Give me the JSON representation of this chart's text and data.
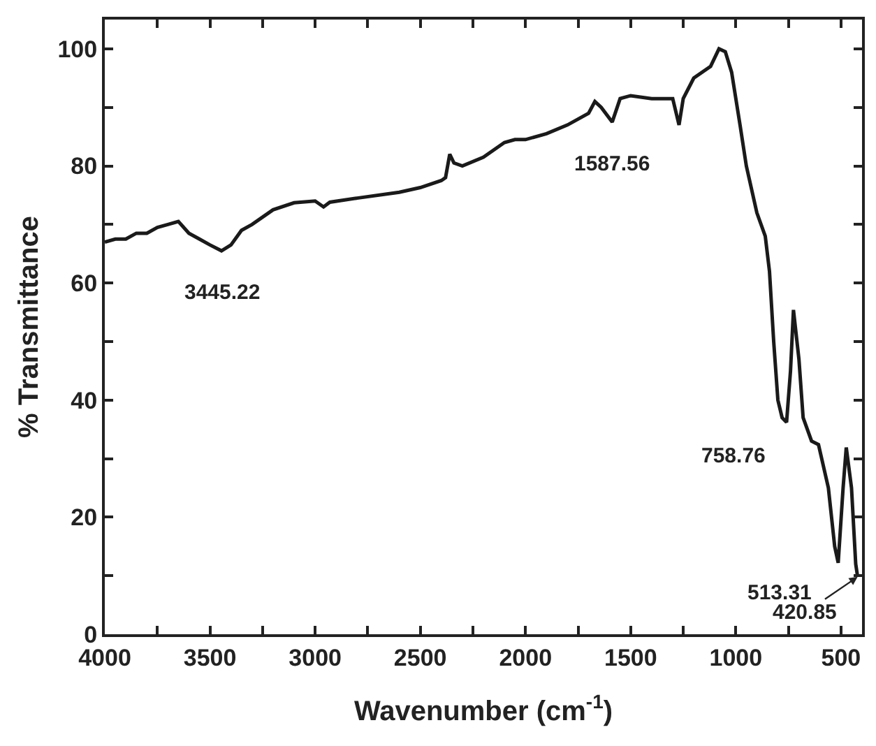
{
  "chart_data": {
    "type": "line",
    "xlabel": "Wavenumber (cm$^{-1}$)",
    "ylabel": "% Transmittance",
    "xlim": [
      4000,
      400
    ],
    "ylim": [
      0,
      105
    ],
    "xticks": [
      4000,
      {
        "value": 3750,
        "label": null
      },
      3500,
      {
        "value": 3250,
        "label": null
      },
      3000,
      {
        "value": 2750,
        "label": null
      },
      2500,
      {
        "value": 2250,
        "label": null
      },
      2000,
      {
        "value": 1750,
        "label": null
      },
      1500,
      {
        "value": 1250,
        "label": null
      },
      1000,
      {
        "value": 750,
        "label": null
      },
      500
    ],
    "yticks": [
      0,
      {
        "value": 10,
        "label": null
      },
      20,
      {
        "value": 30,
        "label": null
      },
      40,
      {
        "value": 50,
        "label": null
      },
      60,
      {
        "value": 70,
        "label": null
      },
      80,
      {
        "value": 90,
        "label": null
      },
      100
    ],
    "marker": "none",
    "line_style": "solid",
    "series": [
      {
        "color": "#1a1a1a",
        "x": [
          4000,
          3950,
          3900,
          3850,
          3800,
          3750,
          3700,
          3650,
          3600,
          3550,
          3500,
          3445.22,
          3400,
          3350,
          3300,
          3200,
          3100,
          3000,
          2960,
          2930,
          2800,
          2600,
          2500,
          2400,
          2380,
          2360,
          2340,
          2300,
          2200,
          2100,
          2050,
          2000,
          1900,
          1800,
          1700,
          1670,
          1640,
          1587.56,
          1550,
          1500,
          1400,
          1300,
          1270,
          1250,
          1200,
          1120,
          1080,
          1050,
          1020,
          980,
          950,
          900,
          860,
          840,
          820,
          800,
          780,
          758.76,
          740,
          726,
          700,
          680,
          640,
          607,
          560,
          530,
          513.31,
          490,
          475,
          450,
          430,
          420.85
        ],
        "values": [
          67,
          67.5,
          67.5,
          68.5,
          68.5,
          69.5,
          70,
          70.5,
          68.5,
          67.5,
          66.5,
          65.5,
          66.5,
          69,
          70,
          72.5,
          73.7,
          74,
          73,
          73.8,
          74.5,
          75.5,
          76.3,
          77.5,
          78,
          82,
          80.5,
          80,
          81.5,
          84,
          84.5,
          84.5,
          85.5,
          87,
          89,
          91,
          90,
          87.5,
          91.5,
          92,
          91.5,
          91.5,
          87,
          91.5,
          95,
          97,
          100,
          99.5,
          96,
          87,
          80,
          72,
          68,
          62,
          50,
          40,
          37,
          36.2,
          45,
          55.4,
          47,
          37,
          33,
          32.4,
          25,
          15,
          12.2,
          25,
          31.9,
          25,
          12,
          9.8
        ]
      }
    ],
    "annotations": [
      {
        "text": "3445.22",
        "x": 3445.22,
        "y": 65.5
      },
      {
        "text": "1587.56",
        "x": 1587.56,
        "y": 87.5
      },
      {
        "text": "758.76",
        "x": 758.76,
        "y": 36.2
      },
      {
        "text": "513.31",
        "x": 513.31,
        "y": 12.2
      },
      {
        "text": "420.85",
        "x": 420.85,
        "y": 9.8
      }
    ]
  }
}
